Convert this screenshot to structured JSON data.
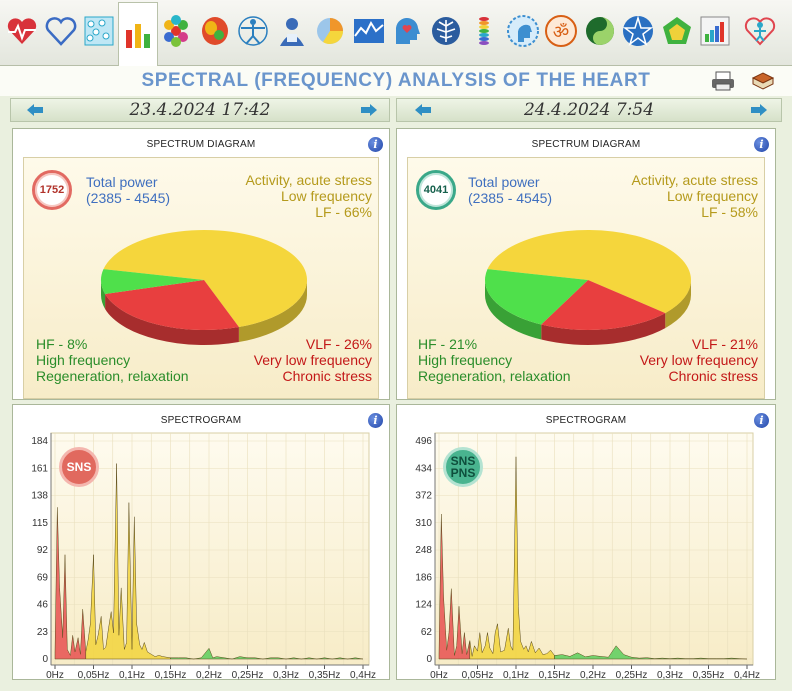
{
  "toolbar": {
    "icons": [
      "heart-pulse-icon",
      "heart-outline-icon",
      "water-cells-icon",
      "bar-chart-icon",
      "hexagon-grid-icon",
      "brain-map-icon",
      "vitruvian-man-icon",
      "person-profile-icon",
      "pie-chart-icon",
      "line-graph-icon",
      "head-heart-icon",
      "tree-network-icon",
      "chakra-column-icon",
      "head-profile-icon",
      "om-symbol-icon",
      "yin-yang-icon",
      "star-icon",
      "pentagon-icon",
      "rising-bars-icon",
      "logo-icon"
    ]
  },
  "title": "SPECTRAL (FREQUENCY) ANALYSIS OF THE HEART",
  "dates": {
    "left": "23.4.2024 17:42",
    "right": "24.4.2024 7:54"
  },
  "panels": {
    "spectrum_title": "SPECTRUM DIAGRAM",
    "spectrogram_title": "SPECTROGRAM",
    "info_glyph": "i"
  },
  "labels": {
    "total_power": "Total power",
    "power_range": "(2385 - 4545)",
    "lf_line1": "Activity, acute stress",
    "lf_line2": "Low frequency",
    "hf_line2": "High frequency",
    "hf_line3": "Regeneration, relaxation",
    "vlf_line2": "Very low frequency",
    "vlf_line3": "Chronic stress"
  },
  "left": {
    "total_power_value": "1752",
    "lf_pct": "LF - 66%",
    "hf_pct": "HF - 8%",
    "vlf_pct": "VLF - 26%",
    "sns": [
      "SNS"
    ],
    "y_ticks": [
      "184",
      "161",
      "138",
      "115",
      "92",
      "69",
      "46",
      "23",
      "0"
    ]
  },
  "right": {
    "total_power_value": "4041",
    "lf_pct": "LF - 58%",
    "hf_pct": "HF - 21%",
    "vlf_pct": "VLF - 21%",
    "sns": [
      "SNS",
      "PNS"
    ],
    "y_ticks": [
      "496",
      "434",
      "372",
      "310",
      "248",
      "186",
      "124",
      "62",
      "0"
    ]
  },
  "x_ticks": [
    "0Hz",
    "0,05Hz",
    "0,1Hz",
    "0,15Hz",
    "0,2Hz",
    "0,25Hz",
    "0,3Hz",
    "0,35Hz",
    "0,4Hz"
  ],
  "chart_data": [
    {
      "type": "pie",
      "categories": [
        "LF",
        "VLF",
        "HF"
      ],
      "values": [
        66,
        26,
        8
      ],
      "colors": [
        "#f5d63c",
        "#e83f3f",
        "#4fe04b"
      ]
    },
    {
      "type": "pie",
      "categories": [
        "LF",
        "VLF",
        "HF"
      ],
      "values": [
        58,
        21,
        21
      ],
      "colors": [
        "#f5d63c",
        "#e83f3f",
        "#4fe04b"
      ]
    },
    {
      "type": "area",
      "xlabel": "",
      "ylabel": "",
      "ylim": [
        0,
        184
      ],
      "xlim": [
        0,
        0.4
      ],
      "x": [
        0,
        0.003,
        0.006,
        0.01,
        0.013,
        0.016,
        0.02,
        0.023,
        0.026,
        0.03,
        0.033,
        0.036,
        0.04,
        0.043,
        0.046,
        0.05,
        0.053,
        0.056,
        0.06,
        0.063,
        0.066,
        0.07,
        0.073,
        0.076,
        0.08,
        0.083,
        0.086,
        0.09,
        0.093,
        0.096,
        0.1,
        0.103,
        0.106,
        0.11,
        0.113,
        0.116,
        0.12,
        0.125,
        0.13,
        0.135,
        0.14,
        0.15,
        0.16,
        0.17,
        0.18,
        0.19,
        0.2,
        0.205,
        0.21,
        0.22,
        0.23,
        0.24,
        0.25,
        0.26,
        0.27,
        0.28,
        0.29,
        0.3,
        0.31,
        0.32,
        0.33,
        0.34,
        0.35,
        0.36,
        0.37,
        0.38,
        0.39,
        0.4
      ],
      "y": [
        5,
        128,
        60,
        18,
        88,
        8,
        3,
        20,
        6,
        18,
        4,
        42,
        6,
        16,
        30,
        88,
        12,
        20,
        36,
        8,
        10,
        28,
        40,
        22,
        165,
        20,
        60,
        8,
        14,
        132,
        8,
        120,
        30,
        12,
        8,
        14,
        6,
        4,
        2,
        3,
        2,
        1,
        1,
        1,
        0,
        1,
        9,
        1,
        2,
        1,
        0,
        2,
        1,
        1,
        0,
        1,
        1,
        0,
        1,
        0,
        1,
        0,
        1,
        0,
        1,
        0,
        1,
        0
      ],
      "band_edges": [
        0.04,
        0.15
      ],
      "band_colors": [
        "#e85050",
        "#f2d43c",
        "#5ccd5c"
      ]
    },
    {
      "type": "area",
      "xlabel": "",
      "ylabel": "",
      "ylim": [
        0,
        496
      ],
      "xlim": [
        0,
        0.4
      ],
      "x": [
        0,
        0.003,
        0.006,
        0.01,
        0.013,
        0.016,
        0.02,
        0.023,
        0.026,
        0.03,
        0.033,
        0.036,
        0.04,
        0.043,
        0.046,
        0.05,
        0.053,
        0.056,
        0.06,
        0.063,
        0.066,
        0.07,
        0.073,
        0.076,
        0.08,
        0.085,
        0.09,
        0.093,
        0.096,
        0.1,
        0.103,
        0.106,
        0.11,
        0.113,
        0.116,
        0.12,
        0.125,
        0.13,
        0.135,
        0.14,
        0.145,
        0.15,
        0.16,
        0.17,
        0.18,
        0.19,
        0.2,
        0.21,
        0.22,
        0.23,
        0.24,
        0.25,
        0.26,
        0.27,
        0.28,
        0.29,
        0.3,
        0.31,
        0.32,
        0.33,
        0.34,
        0.35,
        0.36,
        0.37,
        0.38,
        0.39,
        0.4
      ],
      "y": [
        10,
        330,
        140,
        20,
        60,
        160,
        8,
        30,
        120,
        12,
        60,
        10,
        42,
        6,
        30,
        18,
        60,
        14,
        30,
        60,
        25,
        12,
        60,
        80,
        16,
        20,
        70,
        30,
        20,
        460,
        120,
        40,
        22,
        30,
        16,
        40,
        14,
        25,
        10,
        12,
        20,
        8,
        10,
        6,
        14,
        5,
        8,
        6,
        4,
        30,
        10,
        4,
        2,
        3,
        1,
        2,
        1,
        2,
        1,
        1,
        2,
        1,
        1,
        1,
        2,
        1,
        0
      ],
      "band_edges": [
        0.04,
        0.15
      ],
      "band_colors": [
        "#e85050",
        "#f2d43c",
        "#5ccd5c"
      ]
    }
  ]
}
